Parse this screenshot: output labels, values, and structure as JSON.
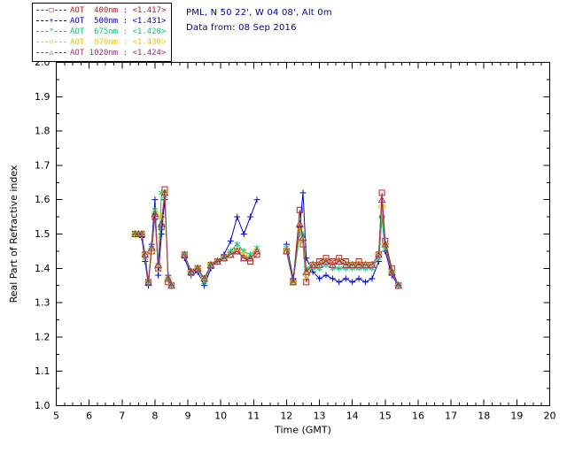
{
  "header": {
    "station_line": "PML, N 50 22', W 04 08', Alt 0m",
    "date_line": "Data from: 08 Sep 2016",
    "text_color": "#00008b"
  },
  "chart_data": {
    "type": "line",
    "title": "",
    "xlabel": "Time (GMT)",
    "ylabel": "Real Part of Refractive index",
    "xlim": [
      5,
      20
    ],
    "ylim": [
      1.0,
      2.0
    ],
    "grid": false,
    "legend_position": "top-left",
    "x_ticks": [
      5,
      6,
      7,
      8,
      9,
      10,
      11,
      12,
      13,
      14,
      15,
      16,
      17,
      18,
      19,
      20
    ],
    "x_tick_labels": [
      "5",
      "6",
      "7",
      "8",
      "9",
      "10",
      "11",
      "12",
      "13",
      "14",
      "15",
      "16",
      "17",
      "18",
      "19",
      "20"
    ],
    "y_ticks": [
      1.0,
      1.1,
      1.2,
      1.3,
      1.4,
      1.5,
      1.6,
      1.7,
      1.8,
      1.9,
      2.0
    ],
    "y_tick_labels": [
      "1.0",
      "1.1",
      "1.2",
      "1.3",
      "1.4",
      "1.5",
      "1.6",
      "1.7",
      "1.8",
      "1.9",
      "2.0"
    ],
    "x": [
      7.4,
      7.5,
      7.6,
      7.7,
      7.8,
      7.9,
      8.0,
      8.1,
      8.2,
      8.3,
      8.4,
      8.5,
      8.9,
      9.1,
      9.3,
      9.5,
      9.7,
      9.9,
      10.1,
      10.3,
      10.5,
      10.7,
      10.9,
      11.1,
      12.0,
      12.2,
      12.4,
      12.5,
      12.6,
      12.8,
      13.0,
      13.2,
      13.4,
      13.6,
      13.8,
      14.0,
      14.2,
      14.4,
      14.6,
      14.8,
      14.9,
      15.0,
      15.2,
      15.4
    ],
    "series": [
      {
        "name": "AOT  400nm",
        "legend_value": "<1.417>",
        "color": "#b22222",
        "marker": "square",
        "values": [
          1.5,
          1.5,
          1.5,
          1.44,
          1.36,
          1.45,
          1.55,
          1.4,
          1.52,
          1.63,
          1.36,
          1.35,
          1.44,
          1.39,
          1.4,
          1.37,
          1.41,
          1.42,
          1.43,
          1.44,
          1.45,
          1.43,
          1.42,
          1.44,
          1.45,
          1.36,
          1.57,
          1.47,
          1.36,
          1.41,
          1.42,
          1.43,
          1.42,
          1.43,
          1.42,
          1.41,
          1.42,
          1.41,
          1.41,
          1.44,
          1.62,
          1.48,
          1.4,
          1.35
        ]
      },
      {
        "name": "AOT  500nm",
        "legend_value": "<1.431>",
        "color": "#0000cd",
        "marker": "plus",
        "values": [
          1.5,
          1.5,
          1.49,
          1.42,
          1.35,
          1.47,
          1.6,
          1.38,
          1.5,
          1.6,
          1.38,
          1.35,
          1.43,
          1.38,
          1.39,
          1.35,
          1.4,
          1.42,
          1.44,
          1.48,
          1.55,
          1.5,
          1.55,
          1.6,
          1.47,
          1.37,
          1.52,
          1.62,
          1.43,
          1.39,
          1.37,
          1.38,
          1.37,
          1.36,
          1.37,
          1.36,
          1.37,
          1.36,
          1.37,
          1.42,
          1.55,
          1.45,
          1.38,
          1.35
        ]
      },
      {
        "name": "AOT  675nm",
        "legend_value": "<1.420>",
        "color": "#00c878",
        "marker": "asterisk",
        "values": [
          1.5,
          1.5,
          1.5,
          1.43,
          1.36,
          1.46,
          1.57,
          1.41,
          1.62,
          1.61,
          1.37,
          1.35,
          1.44,
          1.39,
          1.4,
          1.36,
          1.41,
          1.42,
          1.43,
          1.45,
          1.47,
          1.45,
          1.44,
          1.46,
          1.46,
          1.36,
          1.5,
          1.5,
          1.4,
          1.4,
          1.4,
          1.41,
          1.4,
          1.4,
          1.4,
          1.4,
          1.4,
          1.4,
          1.4,
          1.43,
          1.55,
          1.46,
          1.39,
          1.35
        ]
      },
      {
        "name": "AOT  870nm",
        "legend_value": "<1.430>",
        "color": "#ddcc00",
        "marker": "diamond",
        "values": [
          1.5,
          1.5,
          1.5,
          1.44,
          1.36,
          1.45,
          1.56,
          1.4,
          1.55,
          1.62,
          1.37,
          1.35,
          1.44,
          1.39,
          1.4,
          1.37,
          1.41,
          1.42,
          1.43,
          1.44,
          1.45,
          1.44,
          1.43,
          1.45,
          1.45,
          1.36,
          1.52,
          1.48,
          1.38,
          1.41,
          1.41,
          1.42,
          1.41,
          1.42,
          1.41,
          1.41,
          1.41,
          1.41,
          1.41,
          1.44,
          1.58,
          1.47,
          1.39,
          1.35
        ]
      },
      {
        "name": "AOT 1020nm",
        "legend_value": "<1.424>",
        "color": "#993366",
        "marker": "triangle",
        "values": [
          1.5,
          1.5,
          1.5,
          1.44,
          1.36,
          1.46,
          1.56,
          1.41,
          1.53,
          1.62,
          1.37,
          1.35,
          1.44,
          1.39,
          1.4,
          1.37,
          1.41,
          1.42,
          1.43,
          1.44,
          1.45,
          1.43,
          1.43,
          1.45,
          1.45,
          1.36,
          1.53,
          1.49,
          1.39,
          1.41,
          1.41,
          1.42,
          1.41,
          1.42,
          1.41,
          1.41,
          1.41,
          1.41,
          1.41,
          1.44,
          1.6,
          1.47,
          1.39,
          1.35
        ]
      }
    ]
  }
}
